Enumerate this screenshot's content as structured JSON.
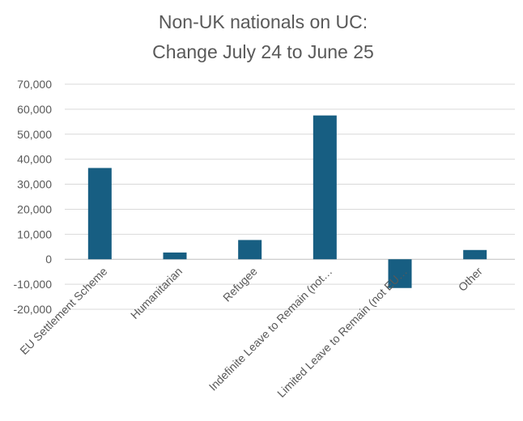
{
  "chart_data": {
    "type": "bar",
    "title_lines": [
      "Non-UK nationals on UC:",
      "Change July 24 to June 25"
    ],
    "categories": [
      "EU Settlement Scheme",
      "Humanitarian",
      "Refugee",
      "Indefinite Leave to Remain (not…",
      "Limited Leave to Remain (not EU…",
      "Other"
    ],
    "values": [
      36500,
      2700,
      7700,
      57500,
      -11500,
      3700
    ],
    "y_ticks": [
      "70,000",
      "60,000",
      "50,000",
      "40,000",
      "30,000",
      "20,000",
      "10,000",
      "0",
      "-10,000",
      "-20,000"
    ],
    "ylim": [
      -20000,
      70000
    ],
    "grid": true,
    "legend": "none",
    "bar_color": "#175e82"
  }
}
